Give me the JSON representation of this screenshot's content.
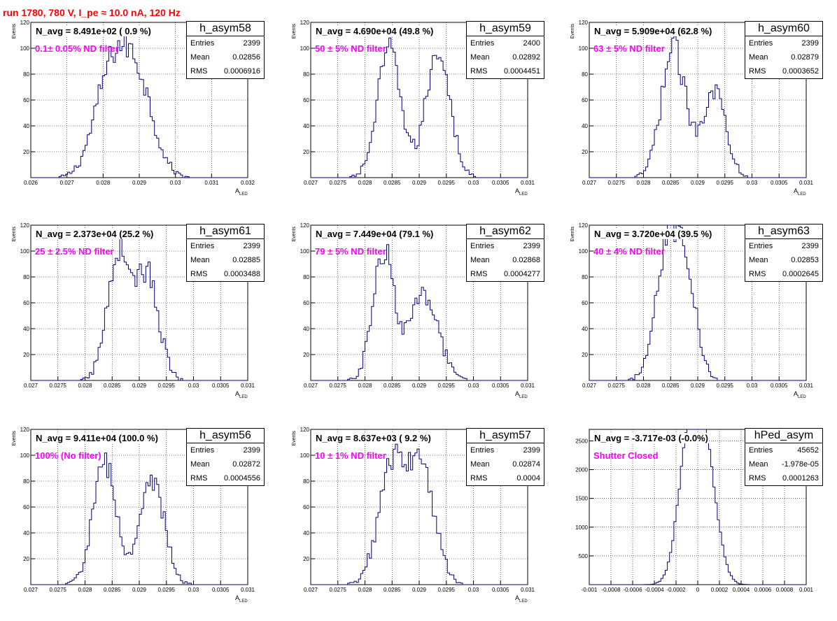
{
  "title": "run 1780,   780 V, I_pe ≈ 10.0 nA, 120 Hz",
  "colors": {
    "title": "#ff0000",
    "annotation": "#ff00ff",
    "histogram": "#000080"
  },
  "panels": [
    {
      "name": "h_asym58",
      "n_avg": "N_avg = 8.491e+02 ( 0.9 %)",
      "annotation": "0.1± 0.05% ND filter",
      "stats": {
        "entries_label": "Entries",
        "entries": "2399",
        "mean_label": "Mean",
        "mean": "0.02856",
        "rms_label": "RMS",
        "rms": "0.0006916"
      },
      "ylabel": "Events",
      "xlabel_main": "A",
      "xlabel_sub": "LED",
      "xticks": [
        "0.026",
        "0.027",
        "0.028",
        "0.029",
        "0.03",
        "0.031",
        "0.032"
      ],
      "yticks": [
        "20",
        "40",
        "60",
        "80",
        "100",
        "120"
      ]
    },
    {
      "name": "h_asym59",
      "n_avg": "N_avg = 4.690e+04 (49.8 %)",
      "annotation": "50 ± 5% ND filter",
      "stats": {
        "entries_label": "Entries",
        "entries": "2400",
        "mean_label": "Mean",
        "mean": "0.02892",
        "rms_label": "RMS",
        "rms": "0.0004451"
      },
      "ylabel": "Events",
      "xlabel_main": "A",
      "xlabel_sub": "LED",
      "xticks": [
        "0.027",
        "0.0275",
        "0.028",
        "0.0285",
        "0.029",
        "0.0295",
        "0.03",
        "0.0305",
        "0.031"
      ],
      "yticks": [
        "20",
        "40",
        "60",
        "80",
        "100",
        "120"
      ]
    },
    {
      "name": "h_asym60",
      "n_avg": "N_avg = 5.909e+04 (62.8 %)",
      "annotation": "63 ± 5% ND filter",
      "stats": {
        "entries_label": "Entries",
        "entries": "2399",
        "mean_label": "Mean",
        "mean": "0.02879",
        "rms_label": "RMS",
        "rms": "0.0003652"
      },
      "ylabel": "Events",
      "xlabel_main": "A",
      "xlabel_sub": "LED",
      "xticks": [
        "0.027",
        "0.0275",
        "0.028",
        "0.0285",
        "0.029",
        "0.0295",
        "0.03",
        "0.0305",
        "0.031"
      ],
      "yticks": [
        "20",
        "40",
        "60",
        "80",
        "100",
        "120"
      ]
    },
    {
      "name": "h_asym61",
      "n_avg": "N_avg = 2.373e+04 (25.2 %)",
      "annotation": "25 ± 2.5% ND filter",
      "stats": {
        "entries_label": "Entries",
        "entries": "2399",
        "mean_label": "Mean",
        "mean": "0.02885",
        "rms_label": "RMS",
        "rms": "0.0003488"
      },
      "ylabel": "Events",
      "xlabel_main": "A",
      "xlabel_sub": "LED",
      "xticks": [
        "0.027",
        "0.0275",
        "0.028",
        "0.0285",
        "0.029",
        "0.0295",
        "0.03",
        "0.0305",
        "0.031"
      ],
      "yticks": [
        "20",
        "40",
        "60",
        "80",
        "100",
        "120"
      ]
    },
    {
      "name": "h_asym62",
      "n_avg": "N_avg = 7.449e+04 (79.1 %)",
      "annotation": "79 ± 5% ND filter",
      "stats": {
        "entries_label": "Entries",
        "entries": "2399",
        "mean_label": "Mean",
        "mean": "0.02868",
        "rms_label": "RMS",
        "rms": "0.0004277"
      },
      "ylabel": "Events",
      "xlabel_main": "A",
      "xlabel_sub": "LED",
      "xticks": [
        "0.027",
        "0.0275",
        "0.028",
        "0.0285",
        "0.029",
        "0.0295",
        "0.03",
        "0.0305",
        "0.031"
      ],
      "yticks": [
        "20",
        "40",
        "60",
        "80",
        "100",
        "120"
      ]
    },
    {
      "name": "h_asym63",
      "n_avg": "N_avg = 3.720e+04 (39.5 %)",
      "annotation": "40 ± 4% ND filter",
      "stats": {
        "entries_label": "Entries",
        "entries": "2399",
        "mean_label": "Mean",
        "mean": "0.02853",
        "rms_label": "RMS",
        "rms": "0.0002645"
      },
      "ylabel": "Events",
      "xlabel_main": "A",
      "xlabel_sub": "LED",
      "xticks": [
        "0.027",
        "0.0275",
        "0.028",
        "0.0285",
        "0.029",
        "0.0295",
        "0.03",
        "0.0305",
        "0.031"
      ],
      "yticks": [
        "20",
        "40",
        "60",
        "80",
        "100",
        "120"
      ]
    },
    {
      "name": "h_asym56",
      "n_avg": "N_avg = 9.411e+04 (100.0 %)",
      "annotation": "100% (No filter)",
      "stats": {
        "entries_label": "Entries",
        "entries": "2399",
        "mean_label": "Mean",
        "mean": "0.02872",
        "rms_label": "RMS",
        "rms": "0.0004556"
      },
      "ylabel": "Events",
      "xlabel_main": "A",
      "xlabel_sub": "LED",
      "xticks": [
        "0.027",
        "0.0275",
        "0.028",
        "0.0285",
        "0.029",
        "0.0295",
        "0.03",
        "0.0305",
        "0.031"
      ],
      "yticks": [
        "20",
        "40",
        "60",
        "80",
        "100",
        "120"
      ]
    },
    {
      "name": "h_asym57",
      "n_avg": "N_avg = 8.637e+03 ( 9.2 %)",
      "annotation": "10 ± 1% ND filter",
      "stats": {
        "entries_label": "Entries",
        "entries": "2399",
        "mean_label": "Mean",
        "mean": "0.02874",
        "rms_label": "RMS",
        "rms": "0.0004"
      },
      "ylabel": "Events",
      "xlabel_main": "A",
      "xlabel_sub": "LED",
      "xticks": [
        "0.027",
        "0.0275",
        "0.028",
        "0.0285",
        "0.029",
        "0.0295",
        "0.03",
        "0.0305",
        "0.031"
      ],
      "yticks": [
        "20",
        "40",
        "60",
        "80",
        "100",
        "120"
      ]
    },
    {
      "name": "hPed_asym",
      "n_avg": "N_avg = -3.717e-03 (-0.0%)",
      "annotation": "Shutter Closed",
      "stats": {
        "entries_label": "Entries",
        "entries": "45652",
        "mean_label": "Mean",
        "mean": "-1.978e-05",
        "rms_label": "RMS",
        "rms": "0.0001263"
      },
      "ylabel": "",
      "xlabel_main": "",
      "xlabel_sub": "",
      "xticks": [
        "-0.001",
        "-0.0008",
        "-0.0006",
        "-0.0004",
        "-0.0002",
        "0",
        "0.0002",
        "0.0004",
        "0.0006",
        "0.0008",
        "0.001"
      ],
      "yticks": [
        "500",
        "1000",
        "1500",
        "2000",
        "2500"
      ]
    }
  ],
  "chart_data": [
    {
      "type": "bar",
      "name": "h_asym58",
      "xlim": [
        0.026,
        0.032
      ],
      "ylim": [
        0,
        120
      ],
      "grid": true,
      "series": [
        {
          "type": "gaussians",
          "components": [
            [
              0.0282,
              0.00045,
              75
            ],
            [
              0.02895,
              0.00045,
              70
            ]
          ]
        }
      ]
    },
    {
      "type": "bar",
      "name": "h_asym59",
      "xlim": [
        0.027,
        0.031
      ],
      "ylim": [
        0,
        120
      ],
      "grid": true,
      "series": [
        {
          "type": "gaussians",
          "components": [
            [
              0.02845,
              0.00022,
              98
            ],
            [
              0.02935,
              0.00022,
              100
            ]
          ]
        }
      ]
    },
    {
      "type": "bar",
      "name": "h_asym60",
      "xlim": [
        0.027,
        0.031
      ],
      "ylim": [
        0,
        120
      ],
      "grid": true,
      "series": [
        {
          "type": "gaussians",
          "components": [
            [
              0.02855,
              0.00022,
              100
            ],
            [
              0.0293,
              0.00022,
              68
            ]
          ]
        }
      ]
    },
    {
      "type": "bar",
      "name": "h_asym61",
      "xlim": [
        0.027,
        0.031
      ],
      "ylim": [
        0,
        120
      ],
      "grid": true,
      "series": [
        {
          "type": "gaussians",
          "components": [
            [
              0.02862,
              0.00021,
              100
            ],
            [
              0.02915,
              0.00021,
              80
            ]
          ]
        }
      ]
    },
    {
      "type": "bar",
      "name": "h_asym62",
      "xlim": [
        0.027,
        0.031
      ],
      "ylim": [
        0,
        120
      ],
      "grid": true,
      "series": [
        {
          "type": "gaussians",
          "components": [
            [
              0.02835,
              0.0002,
              100
            ],
            [
              0.0291,
              0.00025,
              68
            ]
          ]
        }
      ]
    },
    {
      "type": "bar",
      "name": "h_asym63",
      "xlim": [
        0.027,
        0.031
      ],
      "ylim": [
        0,
        120
      ],
      "grid": true,
      "series": [
        {
          "type": "gaussians",
          "components": [
            [
              0.02838,
              0.0002,
              85
            ],
            [
              0.02875,
              0.0002,
              95
            ]
          ]
        }
      ]
    },
    {
      "type": "bar",
      "name": "h_asym56",
      "xlim": [
        0.027,
        0.031
      ],
      "ylim": [
        0,
        120
      ],
      "grid": true,
      "series": [
        {
          "type": "gaussians",
          "components": [
            [
              0.02837,
              0.00022,
              93
            ],
            [
              0.02925,
              0.00022,
              80
            ]
          ]
        }
      ]
    },
    {
      "type": "bar",
      "name": "h_asym57",
      "xlim": [
        0.027,
        0.031
      ],
      "ylim": [
        0,
        120
      ],
      "grid": true,
      "series": [
        {
          "type": "gaussians",
          "components": [
            [
              0.0285,
              0.00025,
              90
            ],
            [
              0.02905,
              0.00025,
              85
            ]
          ]
        }
      ]
    },
    {
      "type": "bar",
      "name": "hPed_asym",
      "xlim": [
        -0.001,
        0.001
      ],
      "ylim": [
        0,
        2700
      ],
      "grid": true,
      "series": [
        {
          "type": "gaussians",
          "components": [
            [
              -8e-05,
              0.0001,
              2400
            ],
            [
              8e-05,
              0.0001,
              2000
            ]
          ]
        }
      ]
    }
  ]
}
